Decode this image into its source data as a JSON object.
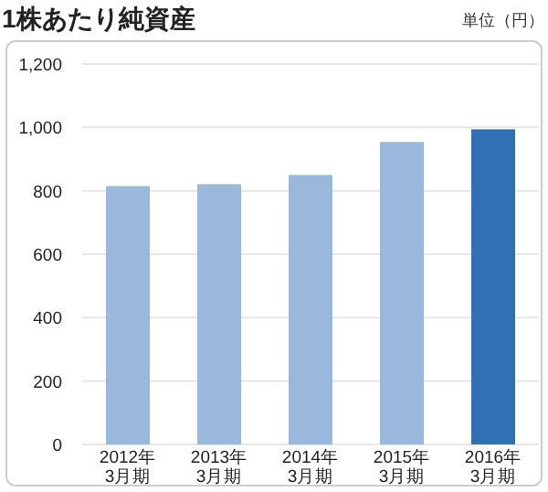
{
  "chart_data": {
    "type": "bar",
    "title": "1株あたり純資産",
    "annotations": [
      "単位（円）"
    ],
    "categories": [
      "2012年\n3月期",
      "2013年\n3月期",
      "2014年\n3月期",
      "2015年\n3月期",
      "2016年\n3月期"
    ],
    "values": [
      815,
      821,
      850,
      954,
      994
    ],
    "colors": [
      "#9ab8db",
      "#9ab8db",
      "#9ab8db",
      "#9ab8db",
      "#3170b3"
    ],
    "ylim": [
      0,
      1200
    ],
    "yticks": [
      0,
      {
        "value": 200,
        "label": "200"
      },
      {
        "value": 400,
        "label": "400"
      },
      {
        "value": 600,
        "label": "600"
      },
      {
        "value": 800,
        "label": "800"
      },
      {
        "value": 1000,
        "label": "1,000"
      },
      {
        "value": 1200,
        "label": "1,200"
      }
    ],
    "grid": "y"
  }
}
